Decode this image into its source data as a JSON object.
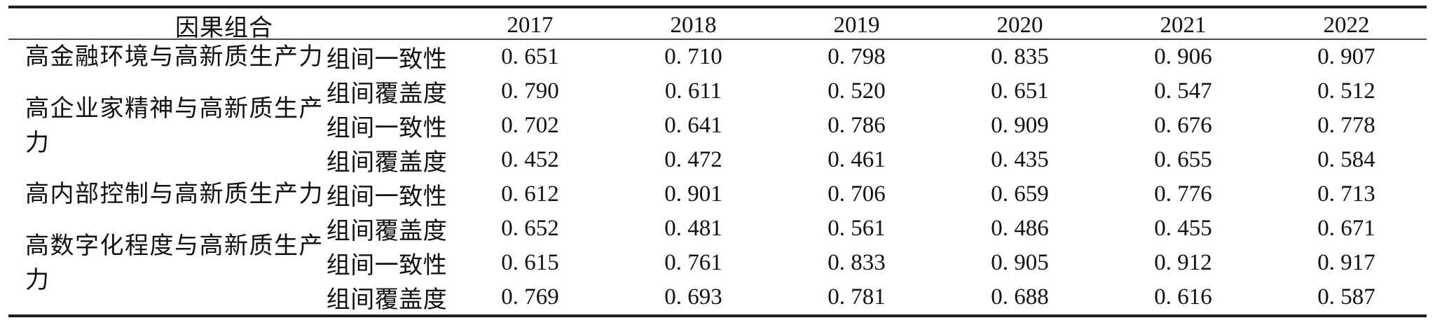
{
  "table": {
    "header": {
      "combo_label": "因果组合",
      "years": [
        "2017",
        "2018",
        "2019",
        "2020",
        "2021",
        "2022"
      ]
    },
    "groups": [
      {
        "label": "高金融环境与高新质生产力"
      },
      {
        "label": "高企业家精神与高新质生产力"
      },
      {
        "label": "高内部控制与高新质生产力"
      },
      {
        "label": "高数字化程度与高新质生产力"
      }
    ],
    "rows": [
      {
        "metric": "组间一致性",
        "values": [
          "0. 651",
          "0. 710",
          "0. 798",
          "0. 835",
          "0. 906",
          "0. 907"
        ]
      },
      {
        "metric": "组间覆盖度",
        "values": [
          "0. 790",
          "0. 611",
          "0. 520",
          "0. 651",
          "0. 547",
          "0. 512"
        ]
      },
      {
        "metric": "组间一致性",
        "values": [
          "0. 702",
          "0. 641",
          "0. 786",
          "0. 909",
          "0. 676",
          "0. 778"
        ]
      },
      {
        "metric": "组间覆盖度",
        "values": [
          "0. 452",
          "0. 472",
          "0. 461",
          "0. 435",
          "0. 655",
          "0. 584"
        ]
      },
      {
        "metric": "组间一致性",
        "values": [
          "0. 612",
          "0. 901",
          "0. 706",
          "0. 659",
          "0. 776",
          "0. 713"
        ]
      },
      {
        "metric": "组间覆盖度",
        "values": [
          "0. 652",
          "0. 481",
          "0. 561",
          "0. 486",
          "0. 455",
          "0. 671"
        ]
      },
      {
        "metric": "组间一致性",
        "values": [
          "0. 615",
          "0. 761",
          "0. 833",
          "0. 905",
          "0. 912",
          "0. 917"
        ]
      },
      {
        "metric": "组间覆盖度",
        "values": [
          "0. 769",
          "0. 693",
          "0. 781",
          "0. 688",
          "0. 616",
          "0. 587"
        ]
      }
    ]
  }
}
